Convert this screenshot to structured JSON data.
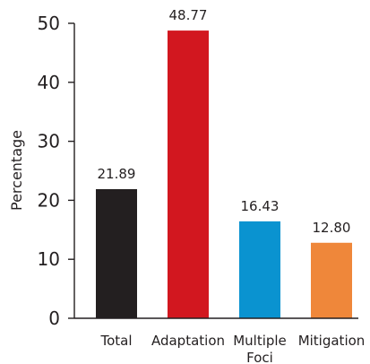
{
  "chart_data": {
    "type": "bar",
    "title": "",
    "xlabel": "",
    "ylabel": "Percentage",
    "ylim": [
      0,
      50
    ],
    "yticks": [
      0,
      10,
      20,
      30,
      40,
      50
    ],
    "grid": false,
    "categories": [
      [
        "Total"
      ],
      [
        "Adaptation"
      ],
      [
        "Multiple",
        "Foci"
      ],
      [
        "Mitigation"
      ]
    ],
    "values": [
      21.89,
      48.77,
      16.43,
      12.8
    ],
    "data_labels": [
      "21.89",
      "48.77",
      "16.43",
      "12.80"
    ],
    "colors": [
      "#231f20",
      "#d2171f",
      "#0a93d0",
      "#ef873a"
    ]
  }
}
